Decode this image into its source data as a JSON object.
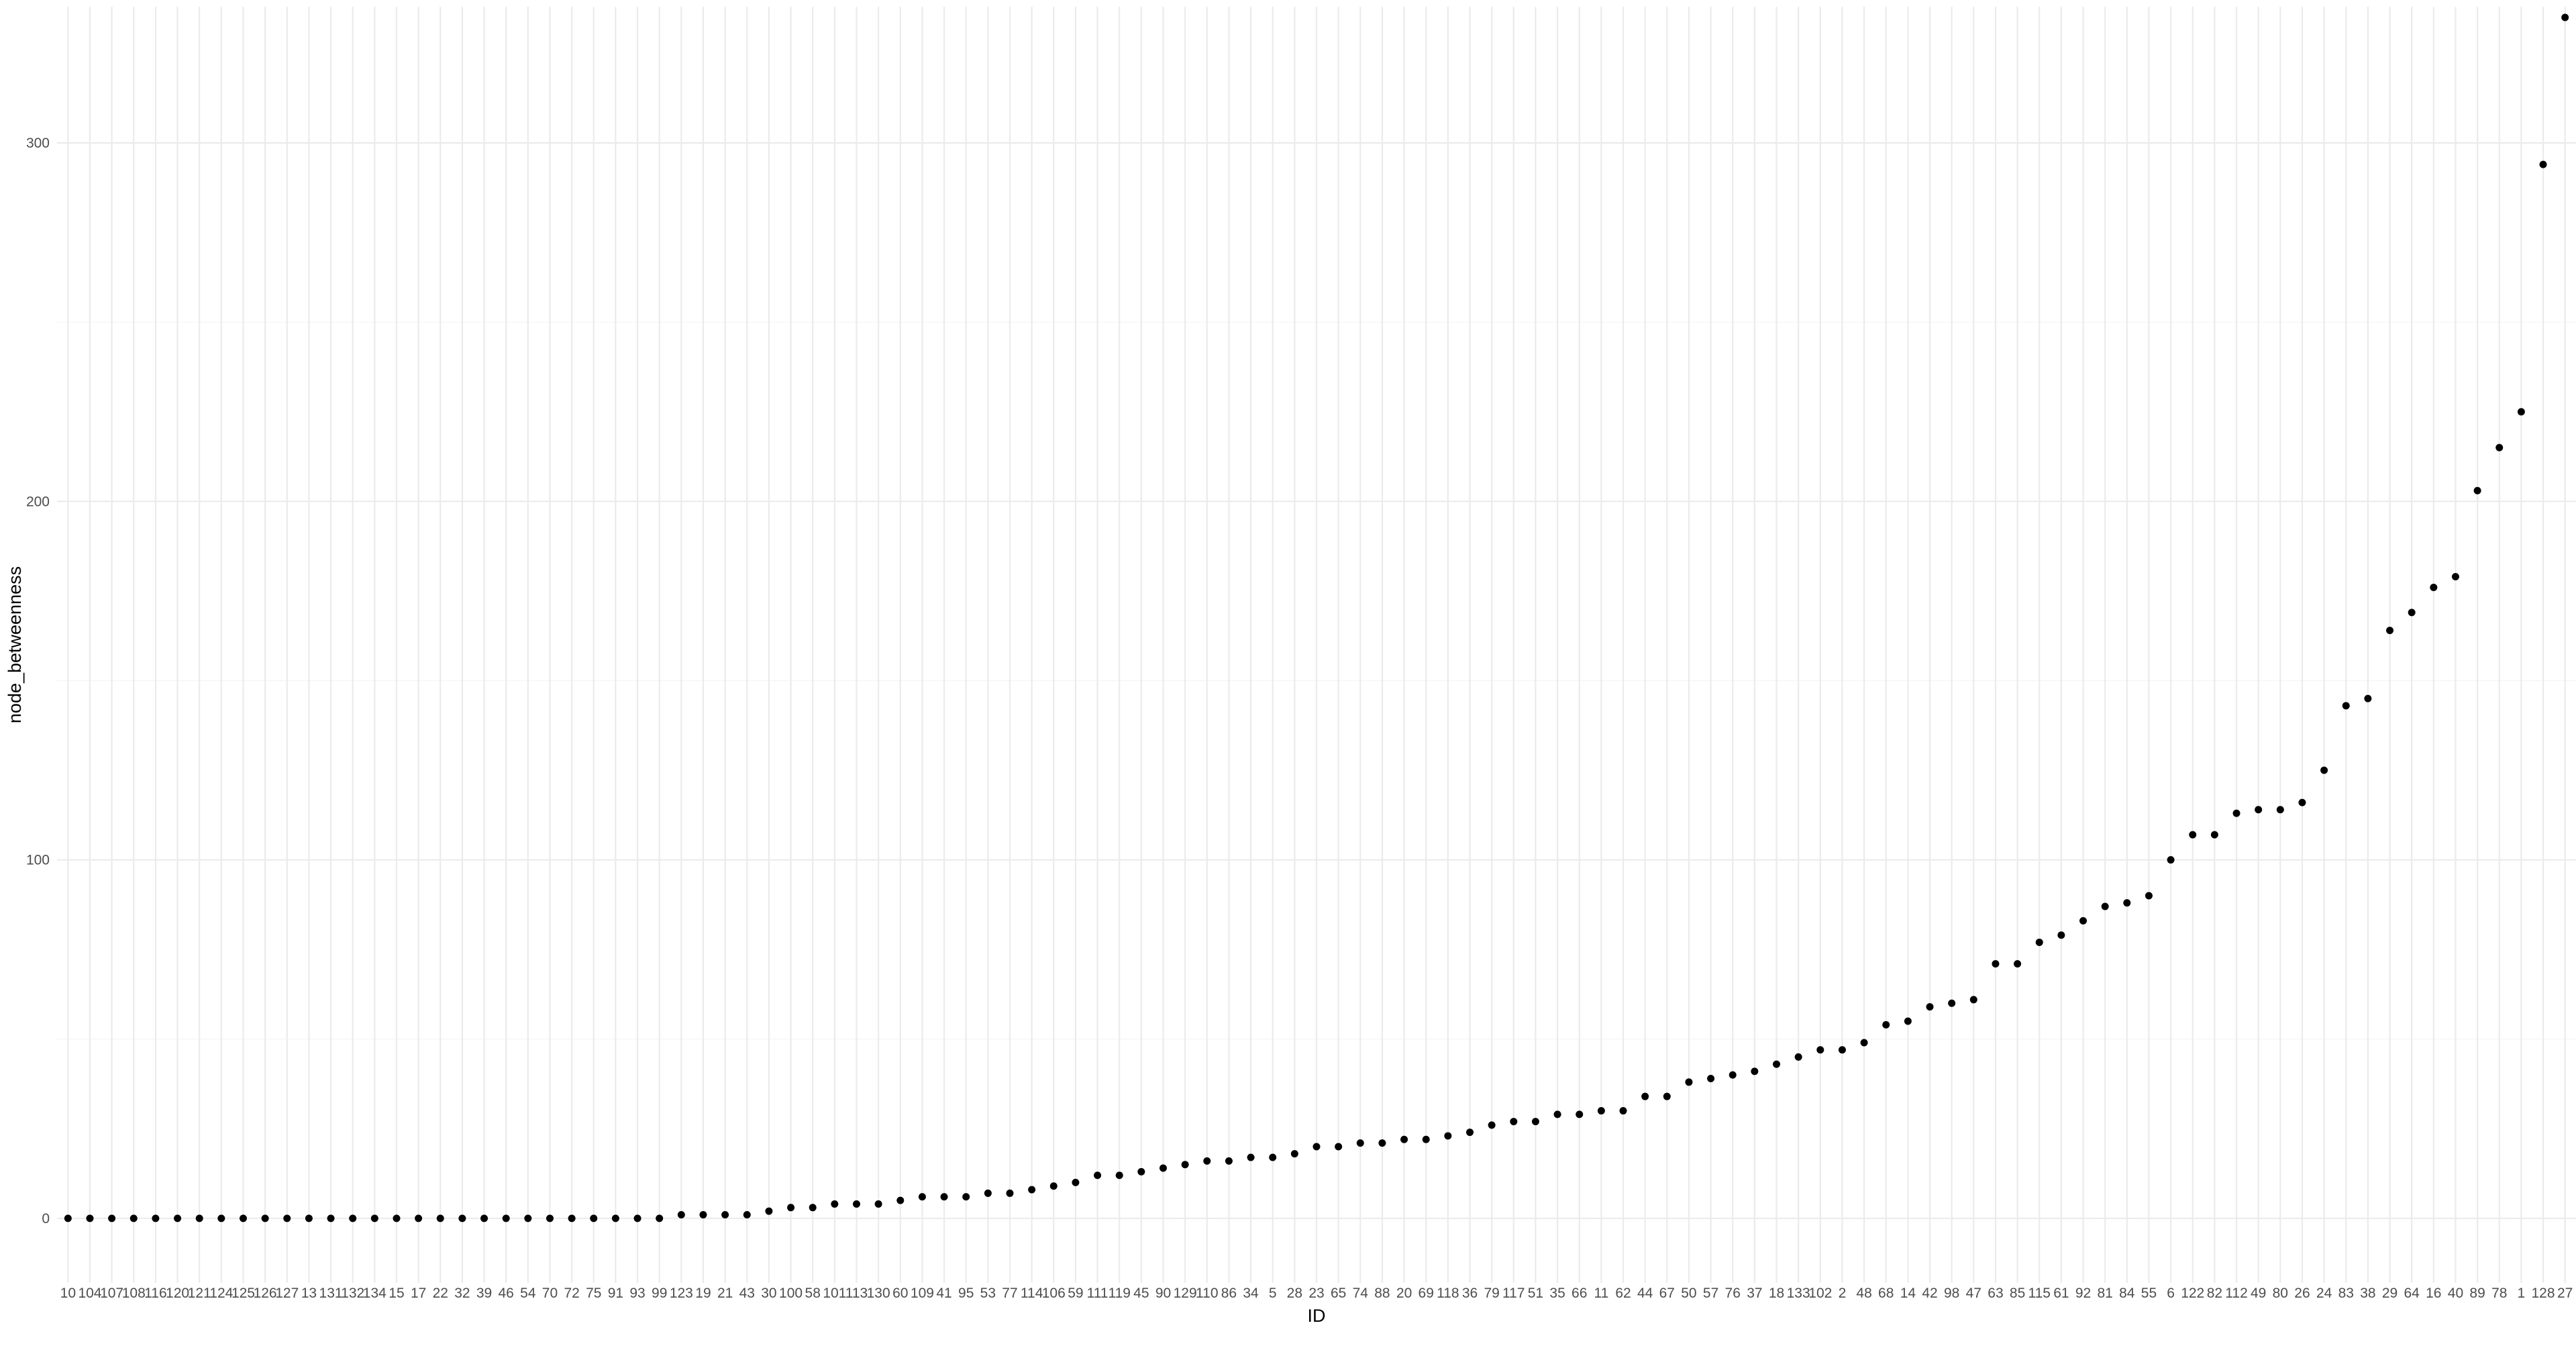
{
  "chart_data": {
    "type": "scatter",
    "title": "",
    "xlabel": "ID",
    "ylabel": "node_betweenness",
    "ylim": [
      -18,
      338
    ],
    "yticks": [
      0,
      100,
      200,
      300
    ],
    "grid": true,
    "point_color": "#000000",
    "x": [
      "10",
      "104",
      "107",
      "108",
      "116",
      "120",
      "121",
      "124",
      "125",
      "126",
      "127",
      "13",
      "131",
      "132",
      "134",
      "15",
      "17",
      "22",
      "32",
      "39",
      "46",
      "54",
      "70",
      "72",
      "75",
      "91",
      "93",
      "99",
      "123",
      "19",
      "21",
      "43",
      "30",
      "100",
      "58",
      "101",
      "113",
      "130",
      "60",
      "109",
      "41",
      "95",
      "53",
      "77",
      "114",
      "106",
      "59",
      "111",
      "119",
      "45",
      "90",
      "129",
      "110",
      "86",
      "34",
      "5",
      "28",
      "23",
      "65",
      "74",
      "88",
      "20",
      "69",
      "118",
      "36",
      "79",
      "117",
      "51",
      "35",
      "66",
      "11",
      "62",
      "44",
      "67",
      "50",
      "57",
      "76",
      "37",
      "18",
      "133",
      "102",
      "2",
      "48",
      "68",
      "14",
      "42",
      "98",
      "47",
      "63",
      "85",
      "115",
      "61",
      "92",
      "81",
      "84",
      "55",
      "6",
      "122",
      "82",
      "112",
      "49",
      "80",
      "26",
      "24",
      "83",
      "38",
      "29",
      "64",
      "16",
      "40",
      "89",
      "78",
      "1",
      "128",
      "27"
    ],
    "y": [
      0,
      0,
      0,
      0,
      0,
      0,
      0,
      0,
      0,
      0,
      0,
      0,
      0,
      0,
      0,
      0,
      0,
      0,
      0,
      0,
      0,
      0,
      0,
      0,
      0,
      0,
      0,
      0,
      1,
      1,
      1,
      1,
      2,
      3,
      3,
      4,
      4,
      4,
      5,
      6,
      6,
      6,
      7,
      7,
      8,
      9,
      10,
      12,
      12,
      13,
      14,
      15,
      16,
      16,
      17,
      17,
      18,
      20,
      20,
      21,
      21,
      22,
      22,
      23,
      24,
      26,
      27,
      27,
      29,
      29,
      30,
      30,
      34,
      34,
      38,
      39,
      40,
      41,
      43,
      45,
      47,
      47,
      49,
      54,
      55,
      59,
      60,
      61,
      71,
      71,
      77,
      79,
      83,
      87,
      88,
      90,
      100,
      107,
      107,
      113,
      114,
      114,
      116,
      125,
      143,
      145,
      164,
      169,
      176,
      179,
      203,
      215,
      225,
      294,
      335
    ]
  }
}
